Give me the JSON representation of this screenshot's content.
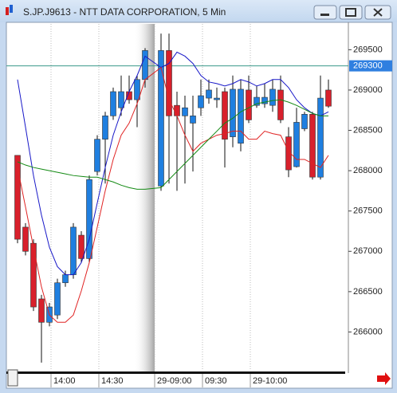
{
  "chart_data": {
    "type": "candlestick",
    "title": "S.JP.J9613 - NTT DATA CORPORATION, 5 Min",
    "categories": [
      null,
      null,
      null,
      null,
      null,
      "14:00",
      null,
      null,
      null,
      null,
      null,
      "14:30",
      null,
      null,
      null,
      null,
      null,
      "29-09:00",
      null,
      null,
      null,
      null,
      null,
      "09:30",
      null,
      null,
      null,
      null,
      null,
      "29-10:00",
      null,
      null,
      null,
      null,
      null,
      null,
      null,
      null,
      null
    ],
    "ohlc": [
      [
        268190,
        268190,
        267100,
        267150
      ],
      [
        267300,
        267350,
        266950,
        267000
      ],
      [
        267100,
        267150,
        266260,
        266310
      ],
      [
        266410,
        266460,
        265620,
        266120
      ],
      [
        266120,
        266360,
        266070,
        266310
      ],
      [
        266210,
        266660,
        266160,
        266610
      ],
      [
        266610,
        266760,
        266560,
        266710
      ],
      [
        266710,
        267350,
        266660,
        267300
      ],
      [
        267200,
        267250,
        266860,
        266910
      ],
      [
        266910,
        267940,
        266860,
        267890
      ],
      [
        267990,
        268440,
        267940,
        268390
      ],
      [
        268390,
        268730,
        267840,
        268680
      ],
      [
        268680,
        269030,
        268630,
        268980
      ],
      [
        268780,
        269180,
        268680,
        268980
      ],
      [
        268980,
        269180,
        268830,
        268880
      ],
      [
        268880,
        269180,
        268540,
        269130
      ],
      [
        269130,
        269520,
        269030,
        269490
      ],
      [
        267810,
        269700,
        267750,
        269490
      ],
      [
        269490,
        269700,
        267840,
        268680
      ],
      [
        268810,
        268980,
        267750,
        268680
      ],
      [
        268680,
        268930,
        267840,
        268780
      ],
      [
        268590,
        268930,
        267990,
        268680
      ],
      [
        268780,
        269130,
        268680,
        268930
      ],
      [
        268900,
        269130,
        268830,
        269000
      ],
      [
        268880,
        269030,
        268780,
        268900
      ],
      [
        268980,
        269030,
        268040,
        268390
      ],
      [
        268420,
        269180,
        268290,
        269010
      ],
      [
        268340,
        269130,
        268240,
        269010
      ],
      [
        269000,
        269180,
        268590,
        268630
      ],
      [
        268810,
        269050,
        268780,
        268910
      ],
      [
        268830,
        269080,
        268780,
        268910
      ],
      [
        268810,
        269130,
        268730,
        269010
      ],
      [
        269000,
        269180,
        268590,
        268630
      ],
      [
        268420,
        268540,
        267920,
        268010
      ],
      [
        268050,
        268780,
        268040,
        268600
      ],
      [
        268520,
        268730,
        268490,
        268700
      ],
      [
        268700,
        268730,
        267890,
        267920
      ],
      [
        267920,
        269180,
        267890,
        268900
      ],
      [
        269000,
        269130,
        268780,
        268800
      ]
    ],
    "up_color": "#1f7fe0",
    "down_color": "#d8202c",
    "series": [
      {
        "color": "#1818c8",
        "values": [
          269130,
          268540,
          267940,
          267450,
          267050,
          266810,
          266710,
          266710,
          266860,
          267150,
          267600,
          268040,
          268440,
          268730,
          268980,
          269180,
          269420,
          269280,
          269330,
          269470,
          269420,
          269330,
          269180,
          269100,
          269080,
          269050,
          269080,
          269130,
          269100,
          269050,
          269080,
          269130,
          269130,
          269030,
          268880,
          268780,
          268710,
          268680,
          268730
        ]
      },
      {
        "color": "#e02424",
        "values": [
          268040,
          267550,
          267050,
          266560,
          266210,
          266120,
          266120,
          266210,
          266510,
          266860,
          267300,
          267750,
          268140,
          268440,
          268590,
          268830,
          269130,
          269280,
          268880,
          268680,
          268440,
          268240,
          268340,
          268390,
          268440,
          268460,
          268490,
          268490,
          268390,
          268390,
          268490,
          268460,
          268440,
          268240,
          268140,
          268140,
          268090,
          268040,
          268190
        ]
      },
      {
        "color": "#148a14",
        "values": [
          268110,
          268070,
          268040,
          268020,
          268000,
          267980,
          267960,
          267940,
          267930,
          267920,
          267920,
          267890,
          267860,
          267820,
          267790,
          267770,
          267770,
          267790,
          267890,
          267990,
          268090,
          268190,
          268290,
          268390,
          268490,
          268590,
          268650,
          268730,
          268780,
          268830,
          268850,
          268870,
          268880,
          268850,
          268810,
          268760,
          268710,
          268680,
          268680
        ]
      }
    ],
    "current_price": 269300,
    "ylim": [
      265520,
      269820
    ],
    "yticks": [
      266000,
      266500,
      267000,
      267500,
      268000,
      268500,
      269000,
      269500
    ],
    "grid": true
  }
}
